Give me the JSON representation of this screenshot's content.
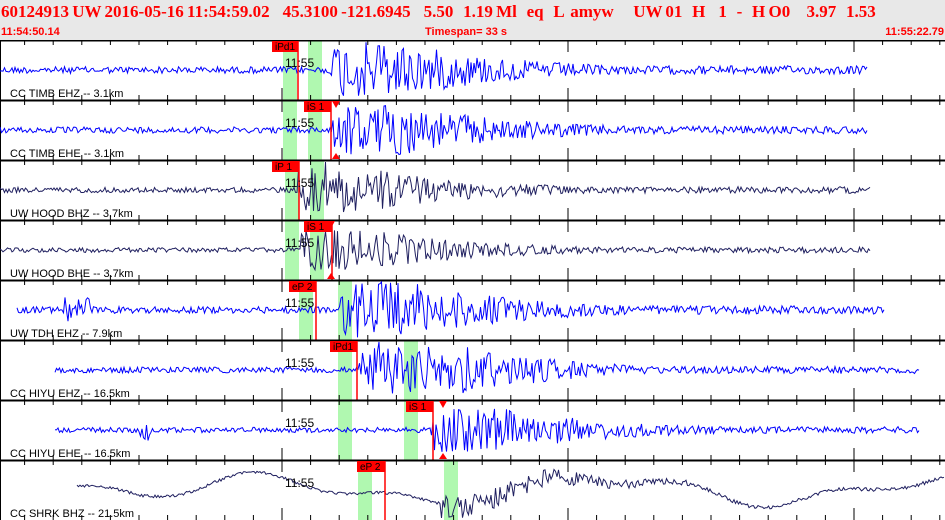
{
  "header": {
    "event_line": "60124913 UW 2016-05-16 11:54:59.02    45.3100 -121.6945    5.50   1.19 Ml   eq   L  amyw      UW 01   H    1   -   H O0     3.97   1.53",
    "start_time": "11:54:50.14",
    "timespan": "Timespan=  33 s",
    "end_time": "11:55:22.79"
  },
  "minute_label": "11:55",
  "colors": {
    "header_text": "#ff0000",
    "trace_blue": "#0000ff",
    "trace_navy": "#202060",
    "pick": "#ff0000",
    "window": "#b0f8b0"
  },
  "traces": [
    {
      "label": "CC TIMB EHZ -- 3.1km",
      "pick": "iPd1",
      "color": "blue"
    },
    {
      "label": "CC TIMB EHE -- 3.1km",
      "pick": "iS 1",
      "color": "blue"
    },
    {
      "label": "UW HOOD BHZ -- 3.7km",
      "pick": "iP 1",
      "color": "navy"
    },
    {
      "label": "UW HOOD BHE -- 3.7km",
      "pick": "iS 1",
      "color": "navy"
    },
    {
      "label": "UW TDH EHZ -- 7.9km",
      "pick": "eP 2",
      "color": "blue"
    },
    {
      "label": "CC HIYU EHZ -- 16.5km",
      "pick": "iPd1",
      "color": "blue"
    },
    {
      "label": "CC HIYU EHE -- 16.5km",
      "pick": "iS 1",
      "color": "blue"
    },
    {
      "label": "CC SHRK BHZ -- 21.5km",
      "pick": "eP 2",
      "color": "navy"
    }
  ]
}
